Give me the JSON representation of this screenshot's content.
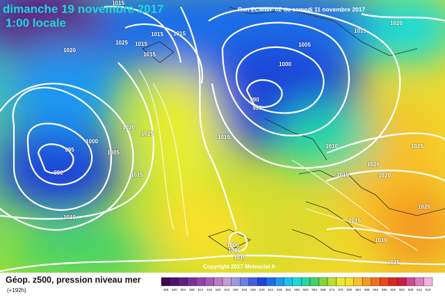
{
  "header": {
    "date": "dimanche 19 novembre 2017",
    "time": "1:00 locale",
    "run": "Run ECMWF 0Z du samedi 11 novembre 2017",
    "copyright": "Copyright 2017 Meteociel.fr"
  },
  "footer": {
    "title": "Géop. z500, pression niveau mer",
    "lead": "(+192h)"
  },
  "isobar_labels": [
    "1015",
    "1020",
    "1025",
    "1015",
    "1015",
    "1015",
    "1015",
    "1015",
    "1020",
    "1005",
    "1000",
    "990",
    "995",
    "1020",
    "1025",
    "1000",
    "1005",
    "995",
    "990",
    "1015",
    "1015",
    "1010",
    "1025",
    "1020",
    "1020",
    "1015",
    "1010",
    "1015",
    "1020",
    "1010",
    "1000",
    "1005",
    "1010",
    "1015"
  ],
  "scale": {
    "values": [
      496,
      500,
      504,
      508,
      512,
      516,
      520,
      524,
      528,
      532,
      536,
      540,
      544,
      548,
      552,
      556,
      560,
      564,
      568,
      572,
      576,
      580,
      584,
      588,
      592,
      596,
      600,
      604,
      608,
      612,
      616
    ],
    "colors": [
      "#3a0a4a",
      "#4b1466",
      "#5e1f80",
      "#7a2f96",
      "#9440a8",
      "#a859b8",
      "#b97ac6",
      "#c79bd4",
      "#9a9ae0",
      "#6f7fe0",
      "#3f5fe0",
      "#1c44d8",
      "#1e6ee8",
      "#1f96f0",
      "#1cc0f0",
      "#19dada",
      "#22d8a4",
      "#3fd26a",
      "#7cd83a",
      "#b8e030",
      "#e8ec30",
      "#f8e02c",
      "#f8c028",
      "#f49a24",
      "#f07020",
      "#e8461c",
      "#d82820",
      "#c81c40",
      "#d04a90",
      "#e07cc0",
      "#f0b4e0"
    ]
  }
}
